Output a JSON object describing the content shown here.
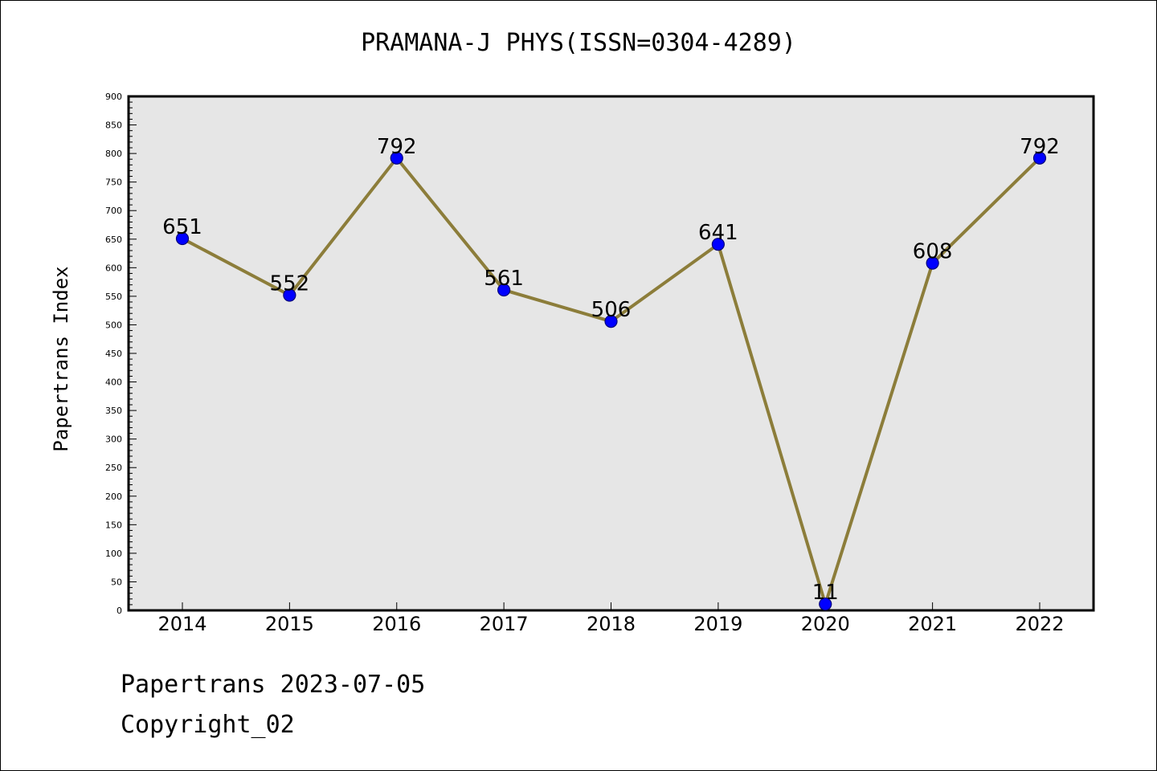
{
  "page": {
    "footer_line1": "Papertrans 2023-07-05",
    "footer_line2": "Copyright_02"
  },
  "chart_data": {
    "type": "line",
    "title": "PRAMANA-J PHYS(ISSN=0304-4289)",
    "xlabel": "",
    "ylabel": "Papertrans Index",
    "categories": [
      "2014",
      "2015",
      "2016",
      "2017",
      "2018",
      "2019",
      "2020",
      "2021",
      "2022"
    ],
    "series": [
      {
        "values": [
          651,
          552,
          792,
          561,
          506,
          641,
          11,
          608,
          792
        ]
      }
    ],
    "ylim": [
      0,
      900
    ],
    "yticks": [
      0,
      50,
      100,
      150,
      200,
      250,
      300,
      350,
      400,
      450,
      500,
      550,
      600,
      650,
      700,
      750,
      800,
      850,
      900
    ],
    "grid": false,
    "legend": "none",
    "colors": {
      "plot_background": "#e6e6e6",
      "line": "#8c7d3a",
      "marker_fill": "#0000ff",
      "marker_edge": "#00007a"
    }
  }
}
